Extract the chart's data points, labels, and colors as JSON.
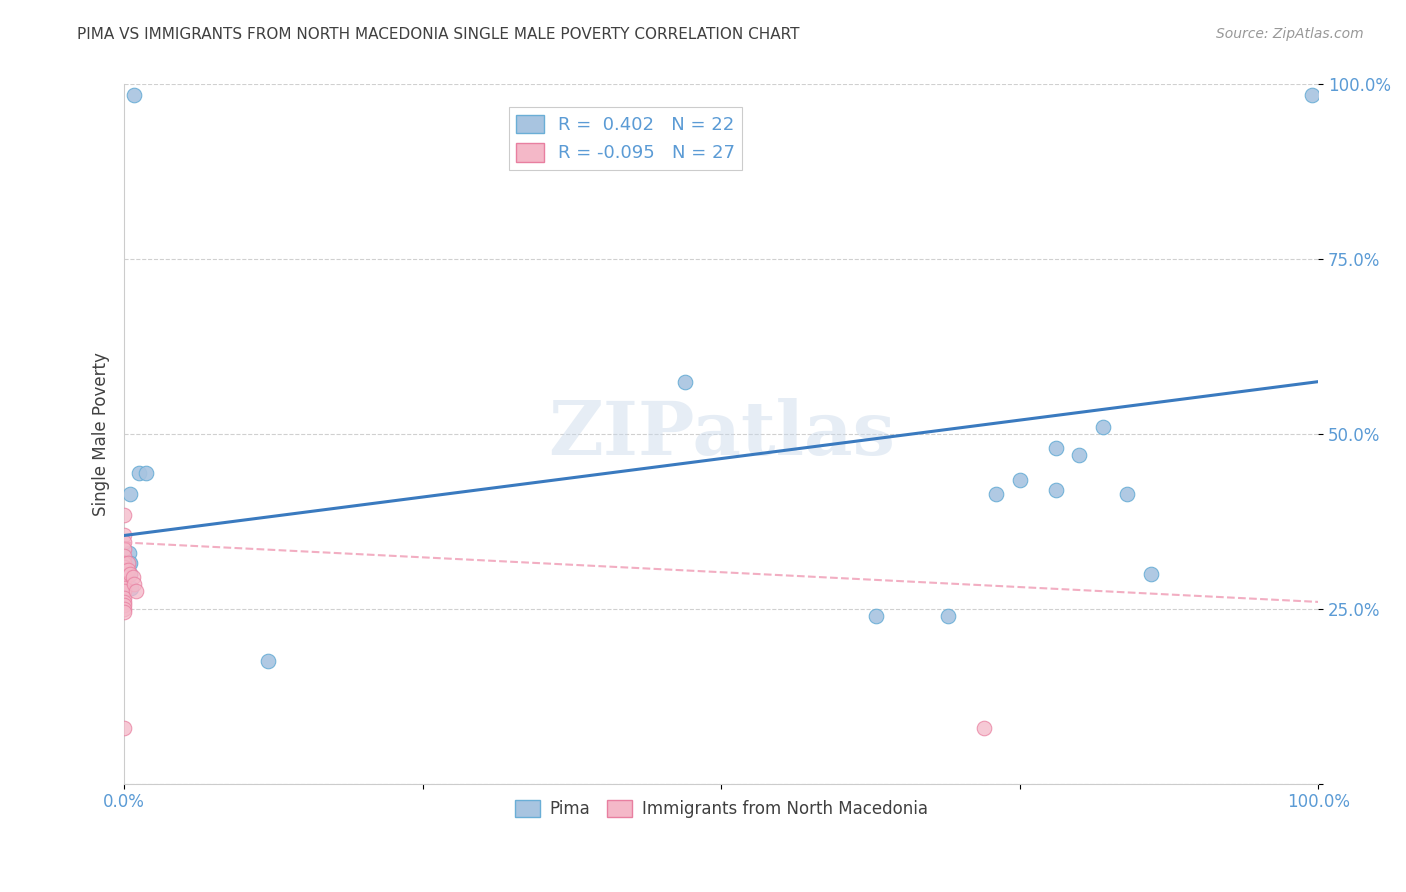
{
  "title": "PIMA VS IMMIGRANTS FROM NORTH MACEDONIA SINGLE MALE POVERTY CORRELATION CHART",
  "source": "Source: ZipAtlas.com",
  "ylabel": "Single Male Poverty",
  "legend_r_pima": "R =  0.402",
  "legend_n_pima": "N = 22",
  "legend_r_immig": "R = -0.095",
  "legend_n_immig": "N = 27",
  "pima_color": "#a8c4e0",
  "pima_edge_color": "#6aaed6",
  "immig_color": "#f4b8c8",
  "immig_edge_color": "#e87fa0",
  "line_pima_color": "#3a7abf",
  "line_immig_color": "#f0a0b8",
  "background_color": "#ffffff",
  "title_color": "#404040",
  "tick_color": "#5b9bd5",
  "grid_color": "#d0d0d0",
  "pima_x": [
    0.008,
    0.012,
    0.018,
    0.005,
    0.004,
    0.004,
    0.005,
    0.005,
    0.006,
    0.47,
    0.63,
    0.69,
    0.73,
    0.75,
    0.78,
    0.8,
    0.82,
    0.84,
    0.86,
    0.995,
    0.78,
    0.12
  ],
  "pima_y": [
    0.985,
    0.445,
    0.445,
    0.415,
    0.33,
    0.315,
    0.315,
    0.3,
    0.28,
    0.575,
    0.24,
    0.24,
    0.415,
    0.435,
    0.42,
    0.47,
    0.51,
    0.415,
    0.3,
    0.985,
    0.48,
    0.175
  ],
  "immig_x": [
    0.0,
    0.0,
    0.0,
    0.0,
    0.0,
    0.0,
    0.0,
    0.0,
    0.0,
    0.0,
    0.0,
    0.0,
    0.0,
    0.0,
    0.0,
    0.0,
    0.0,
    0.0,
    0.0,
    0.0,
    0.003,
    0.003,
    0.005,
    0.007,
    0.008,
    0.01,
    0.72
  ],
  "immig_y": [
    0.385,
    0.355,
    0.345,
    0.335,
    0.325,
    0.315,
    0.31,
    0.305,
    0.3,
    0.295,
    0.29,
    0.285,
    0.28,
    0.275,
    0.265,
    0.26,
    0.255,
    0.25,
    0.245,
    0.08,
    0.315,
    0.305,
    0.3,
    0.295,
    0.285,
    0.275,
    0.08
  ],
  "marker_size": 110,
  "watermark_text": "ZIPatlas",
  "xlim": [
    0.0,
    1.0
  ],
  "ylim": [
    0.0,
    1.0
  ],
  "yticks": [
    0.0,
    0.25,
    0.5,
    0.75,
    1.0
  ],
  "ytick_labels": [
    "",
    "25.0%",
    "50.0%",
    "75.0%",
    "100.0%"
  ],
  "xticks": [
    0.0,
    0.25,
    0.5,
    0.75,
    1.0
  ],
  "xtick_labels": [
    "0.0%",
    "",
    "",
    "",
    "100.0%"
  ]
}
